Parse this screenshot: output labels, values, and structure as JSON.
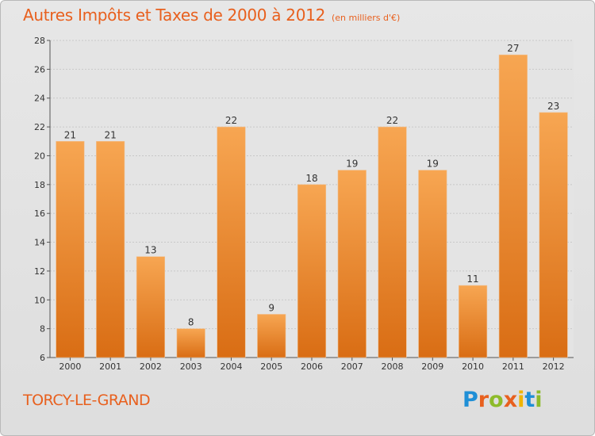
{
  "chart_data": {
    "type": "bar",
    "title": "Autres Impôts et Taxes de 2000 à 2012",
    "subtitle": "(en milliers d'€)",
    "categories": [
      "2000",
      "2001",
      "2002",
      "2003",
      "2004",
      "2005",
      "2006",
      "2007",
      "2008",
      "2009",
      "2010",
      "2011",
      "2012"
    ],
    "values": [
      21,
      21,
      13,
      8,
      22,
      9,
      18,
      19,
      22,
      19,
      11,
      27,
      23
    ],
    "ylim": [
      6,
      28
    ],
    "yticks": [
      6,
      8,
      10,
      12,
      14,
      16,
      18,
      20,
      22,
      24,
      26,
      28
    ],
    "grid": true,
    "bar_color_top": "#f7a652",
    "bar_color_bottom": "#d96d14"
  },
  "location": "TORCY-LE-GRAND",
  "logo": {
    "text": "Proxiti",
    "letters": [
      "P",
      "r",
      "o",
      "x",
      "i",
      "t",
      "i"
    ],
    "colors": [
      "#1f8fd6",
      "#e8601e",
      "#8dbb2a",
      "#e8601e",
      "#f0b400",
      "#1f8fd6",
      "#8dbb2a"
    ]
  },
  "colors": {
    "accent": "#e8601e",
    "background": "#e2e2e2"
  }
}
